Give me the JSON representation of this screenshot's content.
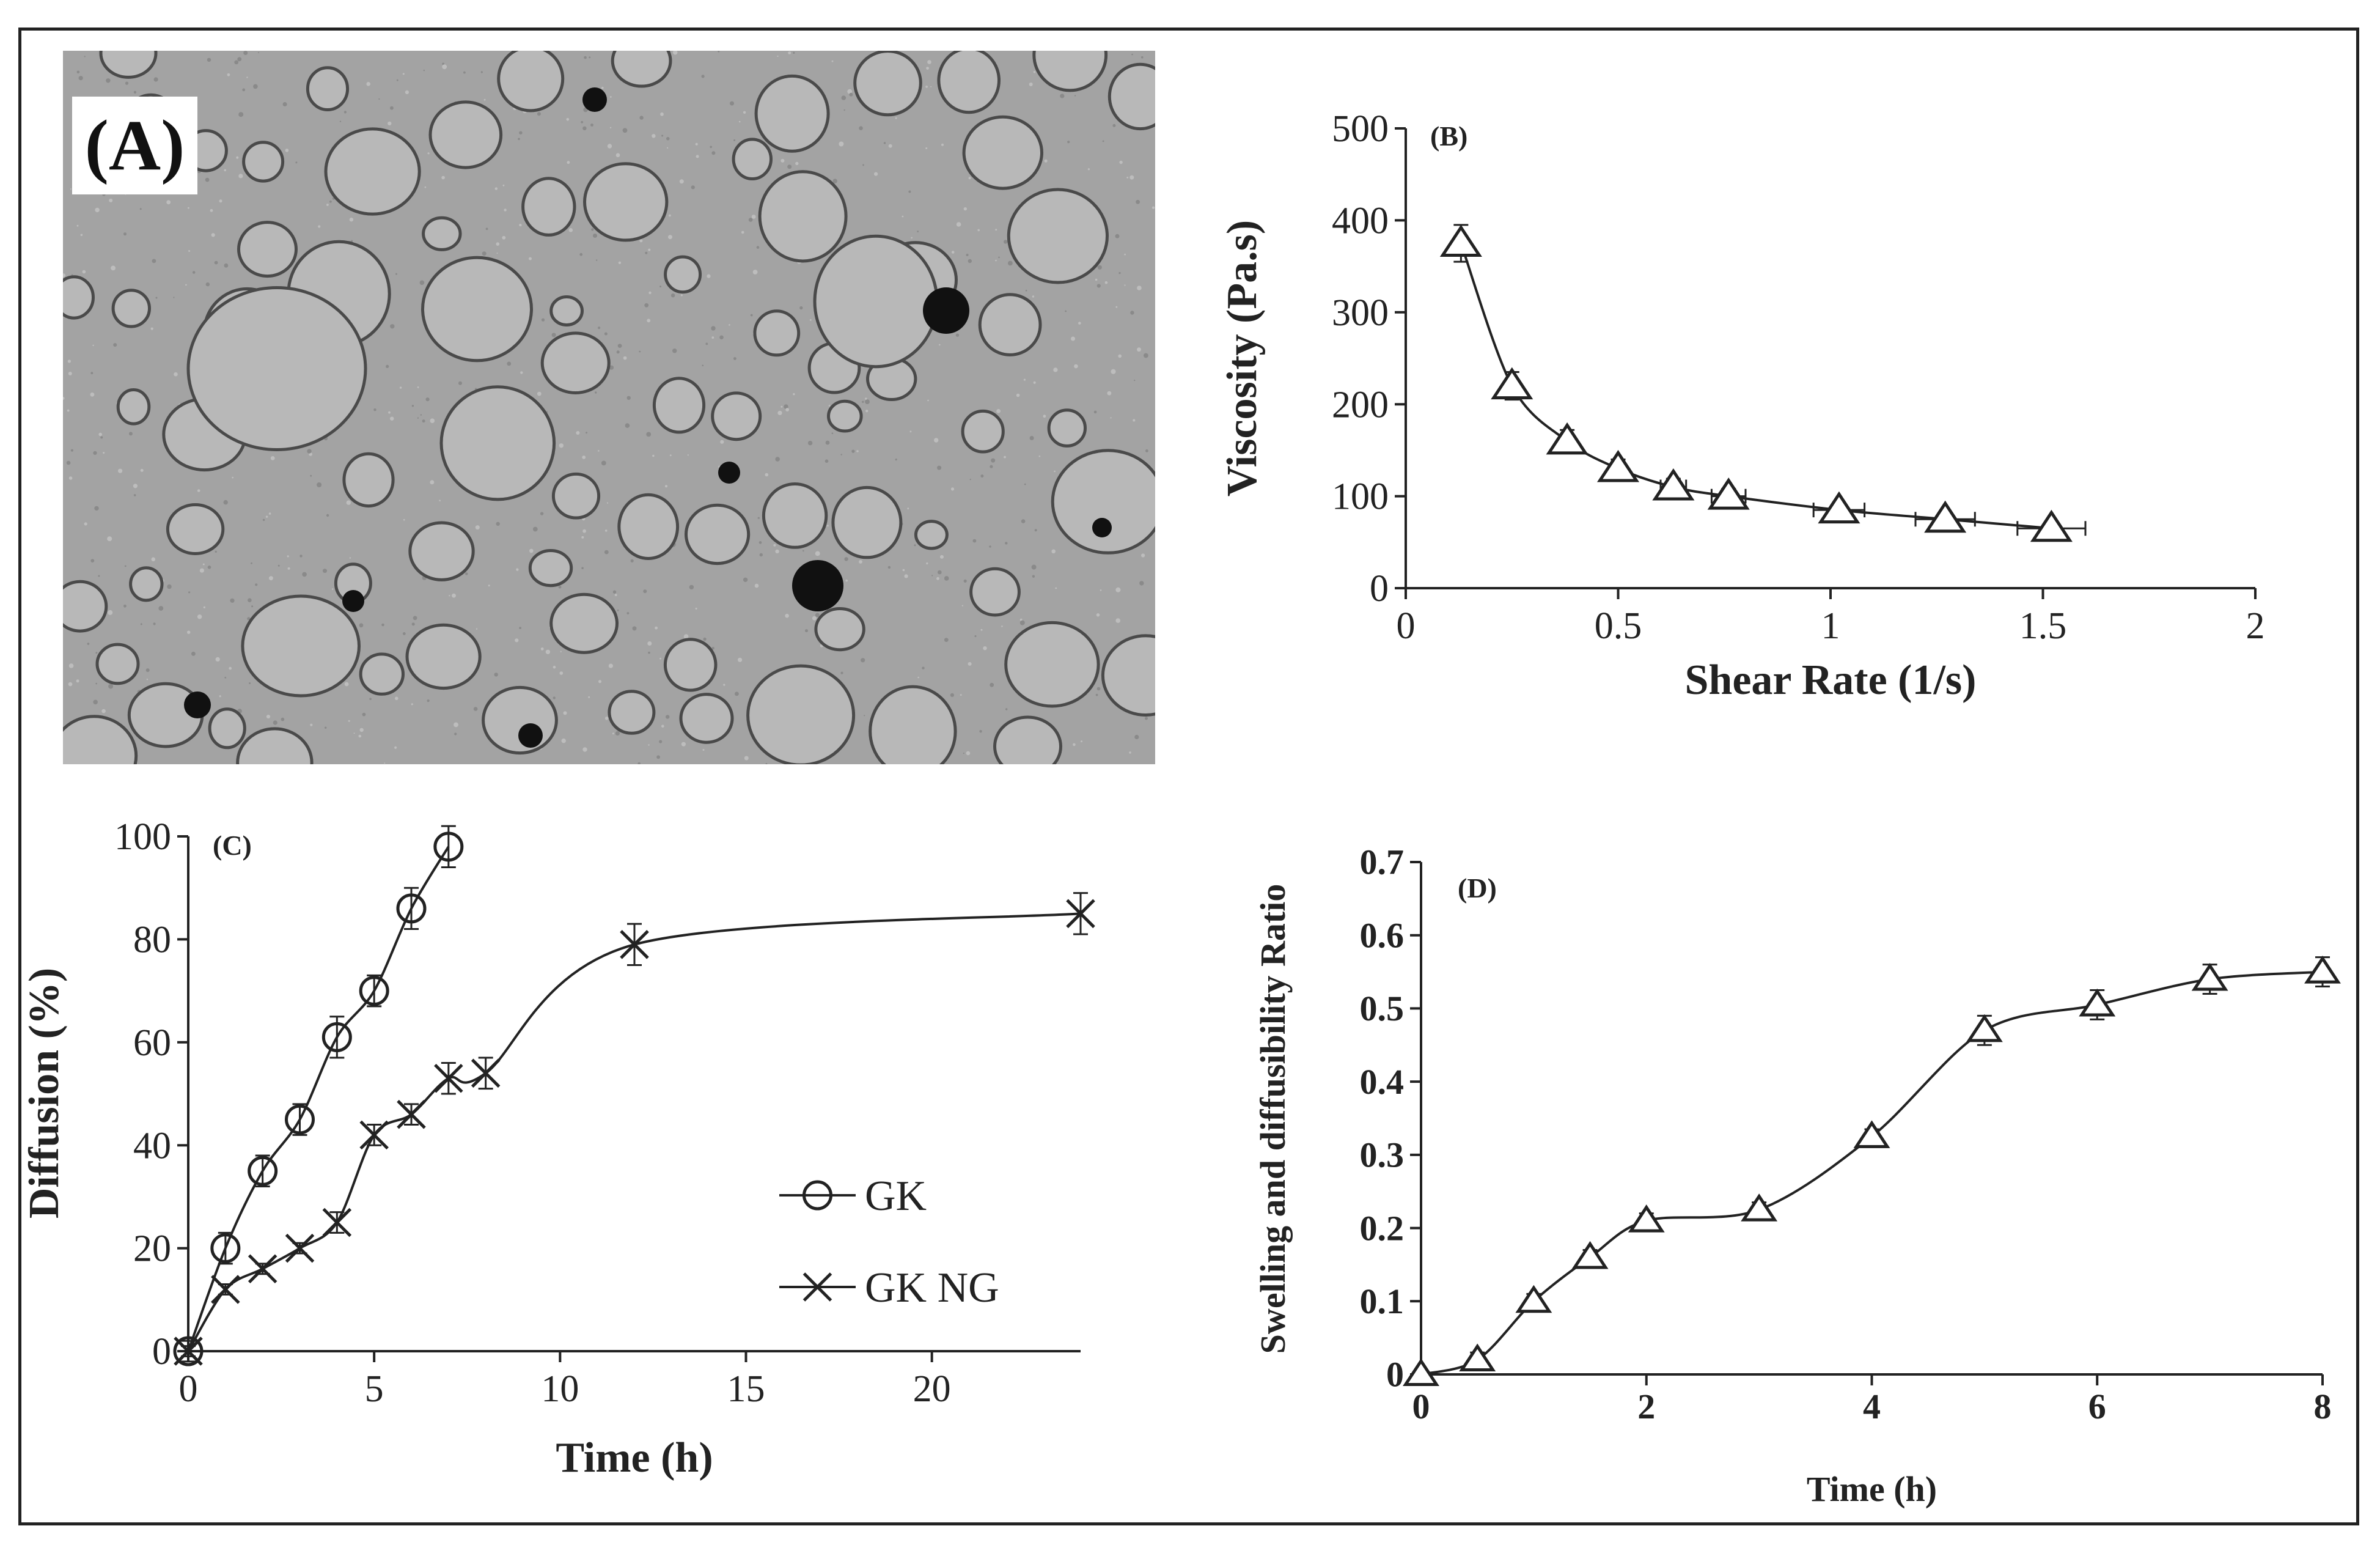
{
  "panel_a": {
    "label": "(A)"
  },
  "chart_data": [
    {
      "id": "B",
      "type": "line",
      "panel_label": "(B)",
      "xlabel": "Shear Rate (1/s)",
      "ylabel": "Viscosity (Pa.s)",
      "xlim": [
        0,
        2
      ],
      "ylim": [
        0,
        500
      ],
      "xticks": [
        0,
        0.5,
        1,
        1.5,
        2
      ],
      "xtick_labels": [
        "0",
        "0.5",
        "1",
        "1.5",
        "2"
      ],
      "yticks": [
        0,
        100,
        200,
        300,
        400,
        500
      ],
      "ytick_labels": [
        "0",
        "100",
        "200",
        "300",
        "400",
        "500"
      ],
      "grid": false,
      "series": [
        {
          "marker": "triangle",
          "x": [
            0.13,
            0.25,
            0.38,
            0.5,
            0.63,
            0.76,
            1.02,
            1.27,
            1.52
          ],
          "y": [
            375,
            220,
            160,
            130,
            110,
            100,
            85,
            75,
            65
          ],
          "yerr": [
            20,
            15,
            12,
            10,
            9,
            8,
            7,
            6,
            6
          ],
          "xerr": [
            0,
            0,
            0,
            0,
            0.03,
            0.04,
            0.06,
            0.07,
            0.08
          ]
        }
      ]
    },
    {
      "id": "C",
      "type": "line",
      "panel_label": "(C)",
      "xlabel": "Time (h)",
      "ylabel": "Diffusion (%)",
      "xlim": [
        0,
        24
      ],
      "ylim": [
        0,
        100
      ],
      "xticks": [
        0,
        5,
        10,
        15,
        20
      ],
      "xtick_labels": [
        "0",
        "5",
        "10",
        "15",
        "20"
      ],
      "yticks": [
        0,
        20,
        40,
        60,
        80,
        100
      ],
      "ytick_labels": [
        "0",
        "20",
        "40",
        "60",
        "80",
        "100"
      ],
      "grid": false,
      "legend": "bottom-center",
      "series": [
        {
          "name": "GK",
          "marker": "circle",
          "x": [
            0,
            1,
            2,
            3,
            4,
            5,
            6,
            7
          ],
          "y": [
            0,
            20,
            35,
            45,
            61,
            70,
            86,
            98
          ],
          "yerr": [
            2,
            3,
            3,
            3,
            4,
            3,
            4,
            4
          ]
        },
        {
          "name": "GK NG",
          "marker": "cross",
          "x": [
            0,
            1,
            2,
            3,
            4,
            5,
            6,
            7,
            8,
            12,
            24
          ],
          "y": [
            0,
            12,
            16,
            20,
            25,
            42,
            46,
            53,
            54,
            79,
            85
          ],
          "yerr": [
            1,
            1,
            1,
            1,
            2,
            2,
            2,
            3,
            3,
            4,
            4
          ]
        }
      ]
    },
    {
      "id": "D",
      "type": "line",
      "panel_label": "(D)",
      "xlabel": "Time (h)",
      "ylabel": "Swelling and diffusibility  Ratio",
      "xlim": [
        0,
        8
      ],
      "ylim": [
        0,
        0.7
      ],
      "xticks": [
        0,
        2,
        4,
        6,
        8
      ],
      "xtick_labels": [
        "0",
        "2",
        "4",
        "6",
        "8"
      ],
      "yticks": [
        0,
        0.1,
        0.2,
        0.3,
        0.4,
        0.5,
        0.6,
        0.7
      ],
      "ytick_labels": [
        "0",
        "0.1",
        "0.2",
        "0.3",
        "0.4",
        "0.5",
        "0.6",
        "0.7"
      ],
      "grid": false,
      "series": [
        {
          "marker": "triangle",
          "x": [
            0,
            0.5,
            1,
            1.5,
            2,
            3,
            4,
            5,
            6,
            7,
            8
          ],
          "y": [
            0,
            0.02,
            0.1,
            0.16,
            0.21,
            0.225,
            0.325,
            0.47,
            0.505,
            0.54,
            0.55
          ],
          "yerr": [
            0.005,
            0.01,
            0.01,
            0.01,
            0.01,
            0.01,
            0.01,
            0.02,
            0.02,
            0.02,
            0.02
          ]
        }
      ]
    }
  ]
}
